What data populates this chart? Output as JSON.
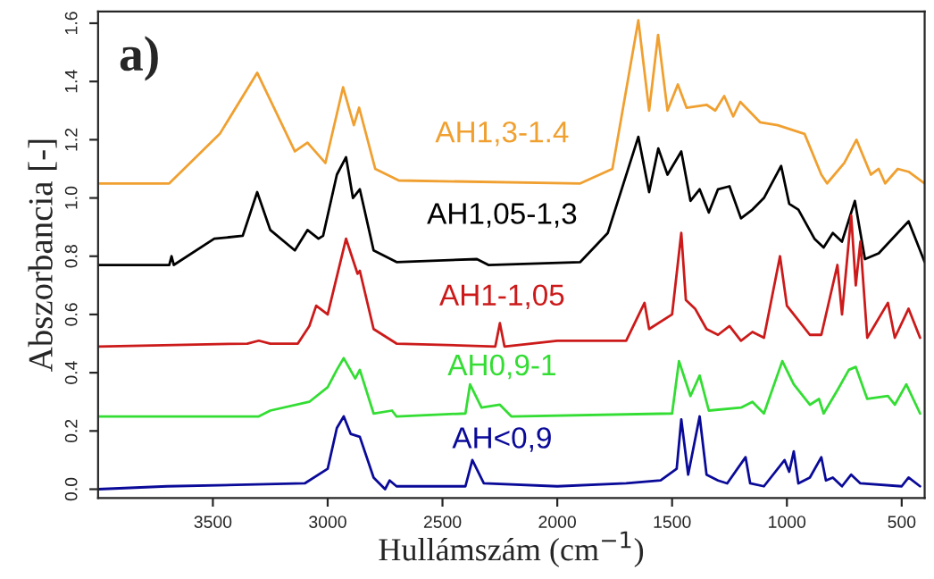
{
  "chart_data": {
    "type": "line",
    "xlabel": "Hullámszám (cm$^{−1}$)",
    "ylabel": "Abszorbancia [-]",
    "annotations": [
      "a)"
    ],
    "xlim": [
      4000,
      400
    ],
    "xticks": [
      3500,
      3000,
      2500,
      2000,
      1500,
      1000,
      500
    ],
    "ylim": [
      -0.03,
      1.64
    ],
    "yticks": [
      {
        "value": 0,
        "label": "0.0"
      },
      0.2,
      0.4,
      0.6,
      0.8,
      {
        "value": 1,
        "label": "1.0"
      },
      1.2,
      1.4,
      1.6
    ],
    "grid": false,
    "legend": false,
    "series": [
      {
        "name": "AH1,3-1.4",
        "color": "#f0a030",
        "x": [
          4000,
          3690,
          3470,
          3307,
          3143,
          3088,
          3010,
          2933,
          2886,
          2863,
          2793,
          2690,
          1900,
          1760,
          1647,
          1600,
          1561,
          1520,
          1475,
          1437,
          1350,
          1312,
          1273,
          1234,
          1203,
          1117,
          1040,
          923,
          850,
          825,
          750,
          697,
          634,
          600,
          572,
          517,
          470,
          400
        ],
        "values": [
          1.05,
          1.05,
          1.22,
          1.43,
          1.16,
          1.19,
          1.12,
          1.38,
          1.25,
          1.31,
          1.1,
          1.06,
          1.05,
          1.1,
          1.61,
          1.3,
          1.56,
          1.3,
          1.39,
          1.31,
          1.32,
          1.3,
          1.35,
          1.28,
          1.33,
          1.26,
          1.25,
          1.22,
          1.08,
          1.05,
          1.12,
          1.2,
          1.08,
          1.1,
          1.05,
          1.1,
          1.09,
          1.05
        ]
      },
      {
        "name": "AH1,05-1,3",
        "color": "#000000",
        "x": [
          4000,
          3690,
          3680,
          3670,
          3494,
          3370,
          3307,
          3250,
          3143,
          3088,
          3040,
          3020,
          2960,
          2920,
          2890,
          2860,
          2800,
          2700,
          2350,
          2300,
          1900,
          1780,
          1647,
          1600,
          1560,
          1520,
          1460,
          1420,
          1380,
          1340,
          1300,
          1250,
          1200,
          1150,
          1100,
          1025,
          990,
          950,
          880,
          840,
          800,
          760,
          704,
          660,
          600,
          470,
          400
        ],
        "values": [
          0.77,
          0.77,
          0.8,
          0.77,
          0.86,
          0.87,
          1.02,
          0.89,
          0.82,
          0.89,
          0.86,
          0.87,
          1.08,
          1.14,
          1.0,
          1.03,
          0.82,
          0.78,
          0.79,
          0.77,
          0.78,
          0.88,
          1.21,
          1.02,
          1.17,
          1.08,
          1.16,
          0.99,
          1.03,
          0.95,
          1.03,
          1.04,
          0.93,
          0.96,
          1.0,
          1.11,
          0.98,
          0.96,
          0.86,
          0.83,
          0.88,
          0.85,
          0.99,
          0.79,
          0.81,
          0.92,
          0.78
        ]
      },
      {
        "name": "AH1-1,05",
        "color": "#cc1a1a",
        "x": [
          4000,
          3350,
          3300,
          3250,
          3130,
          3080,
          3050,
          3000,
          2920,
          2870,
          2860,
          2800,
          2700,
          2270,
          2250,
          2230,
          2000,
          1700,
          1620,
          1600,
          1500,
          1460,
          1440,
          1400,
          1350,
          1300,
          1250,
          1200,
          1150,
          1100,
          1030,
          1000,
          950,
          900,
          850,
          780,
          760,
          720,
          700,
          680,
          650,
          560,
          530,
          470,
          420
        ],
        "values": [
          0.49,
          0.5,
          0.51,
          0.5,
          0.5,
          0.56,
          0.63,
          0.6,
          0.86,
          0.74,
          0.75,
          0.55,
          0.5,
          0.49,
          0.57,
          0.49,
          0.51,
          0.51,
          0.64,
          0.55,
          0.6,
          0.88,
          0.65,
          0.62,
          0.55,
          0.53,
          0.56,
          0.51,
          0.54,
          0.52,
          0.8,
          0.63,
          0.58,
          0.53,
          0.53,
          0.77,
          0.6,
          0.94,
          0.7,
          0.85,
          0.52,
          0.64,
          0.52,
          0.62,
          0.52
        ]
      },
      {
        "name": "AH0,9-1",
        "color": "#33dd33",
        "x": [
          4000,
          3300,
          3250,
          3080,
          3000,
          2960,
          2930,
          2880,
          2860,
          2800,
          2720,
          2700,
          2400,
          2380,
          2330,
          2250,
          2200,
          1500,
          1470,
          1420,
          1380,
          1340,
          1200,
          1150,
          1100,
          1020,
          970,
          900,
          860,
          840,
          780,
          730,
          700,
          650,
          560,
          530,
          480,
          420
        ],
        "values": [
          0.25,
          0.25,
          0.27,
          0.3,
          0.35,
          0.41,
          0.45,
          0.38,
          0.41,
          0.26,
          0.27,
          0.25,
          0.26,
          0.36,
          0.28,
          0.29,
          0.25,
          0.26,
          0.44,
          0.32,
          0.39,
          0.27,
          0.28,
          0.3,
          0.26,
          0.44,
          0.36,
          0.29,
          0.31,
          0.26,
          0.34,
          0.41,
          0.42,
          0.31,
          0.32,
          0.29,
          0.36,
          0.26
        ]
      },
      {
        "name": "AH<0,9",
        "color": "#0a0a99",
        "x": [
          4000,
          3700,
          3100,
          3000,
          2960,
          2930,
          2900,
          2860,
          2800,
          2750,
          2730,
          2700,
          2400,
          2370,
          2320,
          2000,
          1700,
          1550,
          1480,
          1460,
          1430,
          1380,
          1350,
          1300,
          1260,
          1180,
          1160,
          1100,
          1010,
          990,
          970,
          950,
          900,
          850,
          830,
          800,
          760,
          720,
          680,
          500,
          470,
          420
        ],
        "values": [
          0.0,
          0.01,
          0.02,
          0.07,
          0.21,
          0.25,
          0.19,
          0.18,
          0.04,
          0.0,
          0.03,
          0.01,
          0.01,
          0.1,
          0.02,
          0.01,
          0.02,
          0.03,
          0.07,
          0.24,
          0.05,
          0.25,
          0.05,
          0.03,
          0.02,
          0.11,
          0.02,
          0.01,
          0.1,
          0.06,
          0.13,
          0.02,
          0.04,
          0.11,
          0.03,
          0.04,
          0.01,
          0.05,
          0.02,
          0.01,
          0.04,
          0.01
        ]
      }
    ]
  }
}
